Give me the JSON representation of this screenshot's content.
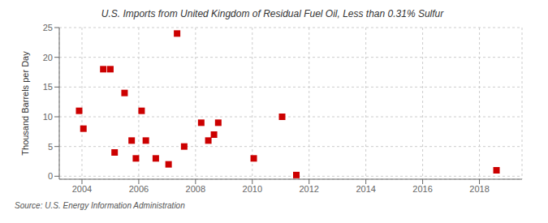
{
  "chart_data": {
    "type": "scatter",
    "title": "U.S. Imports from United Kingdom of Residual Fuel Oil, Less than 0.31% Sulfur",
    "ylabel": "Thousand Barrels per Day",
    "source": "Source: U.S. Energy Information Administration",
    "color": "#cc0000",
    "marker": "square",
    "grid": true,
    "xlim": [
      2003.2,
      2019.5
    ],
    "ylim": [
      -0.5,
      25
    ],
    "xticks": [
      2004,
      2006,
      2008,
      2010,
      2012,
      2014,
      2016,
      2018
    ],
    "yticks": [
      0,
      5,
      10,
      15,
      20,
      25
    ],
    "x": [
      2003.9,
      2004.05,
      2004.75,
      2005.0,
      2005.15,
      2005.5,
      2005.75,
      2005.9,
      2006.1,
      2006.25,
      2006.6,
      2007.05,
      2007.35,
      2007.6,
      2008.2,
      2008.45,
      2008.65,
      2008.8,
      2010.05,
      2011.05,
      2011.55,
      2018.6
    ],
    "values": [
      11,
      8,
      18,
      18,
      4,
      14,
      6,
      3,
      11,
      6,
      3,
      2,
      24,
      5,
      9,
      6,
      7,
      9,
      3,
      10,
      0.2,
      1
    ]
  }
}
